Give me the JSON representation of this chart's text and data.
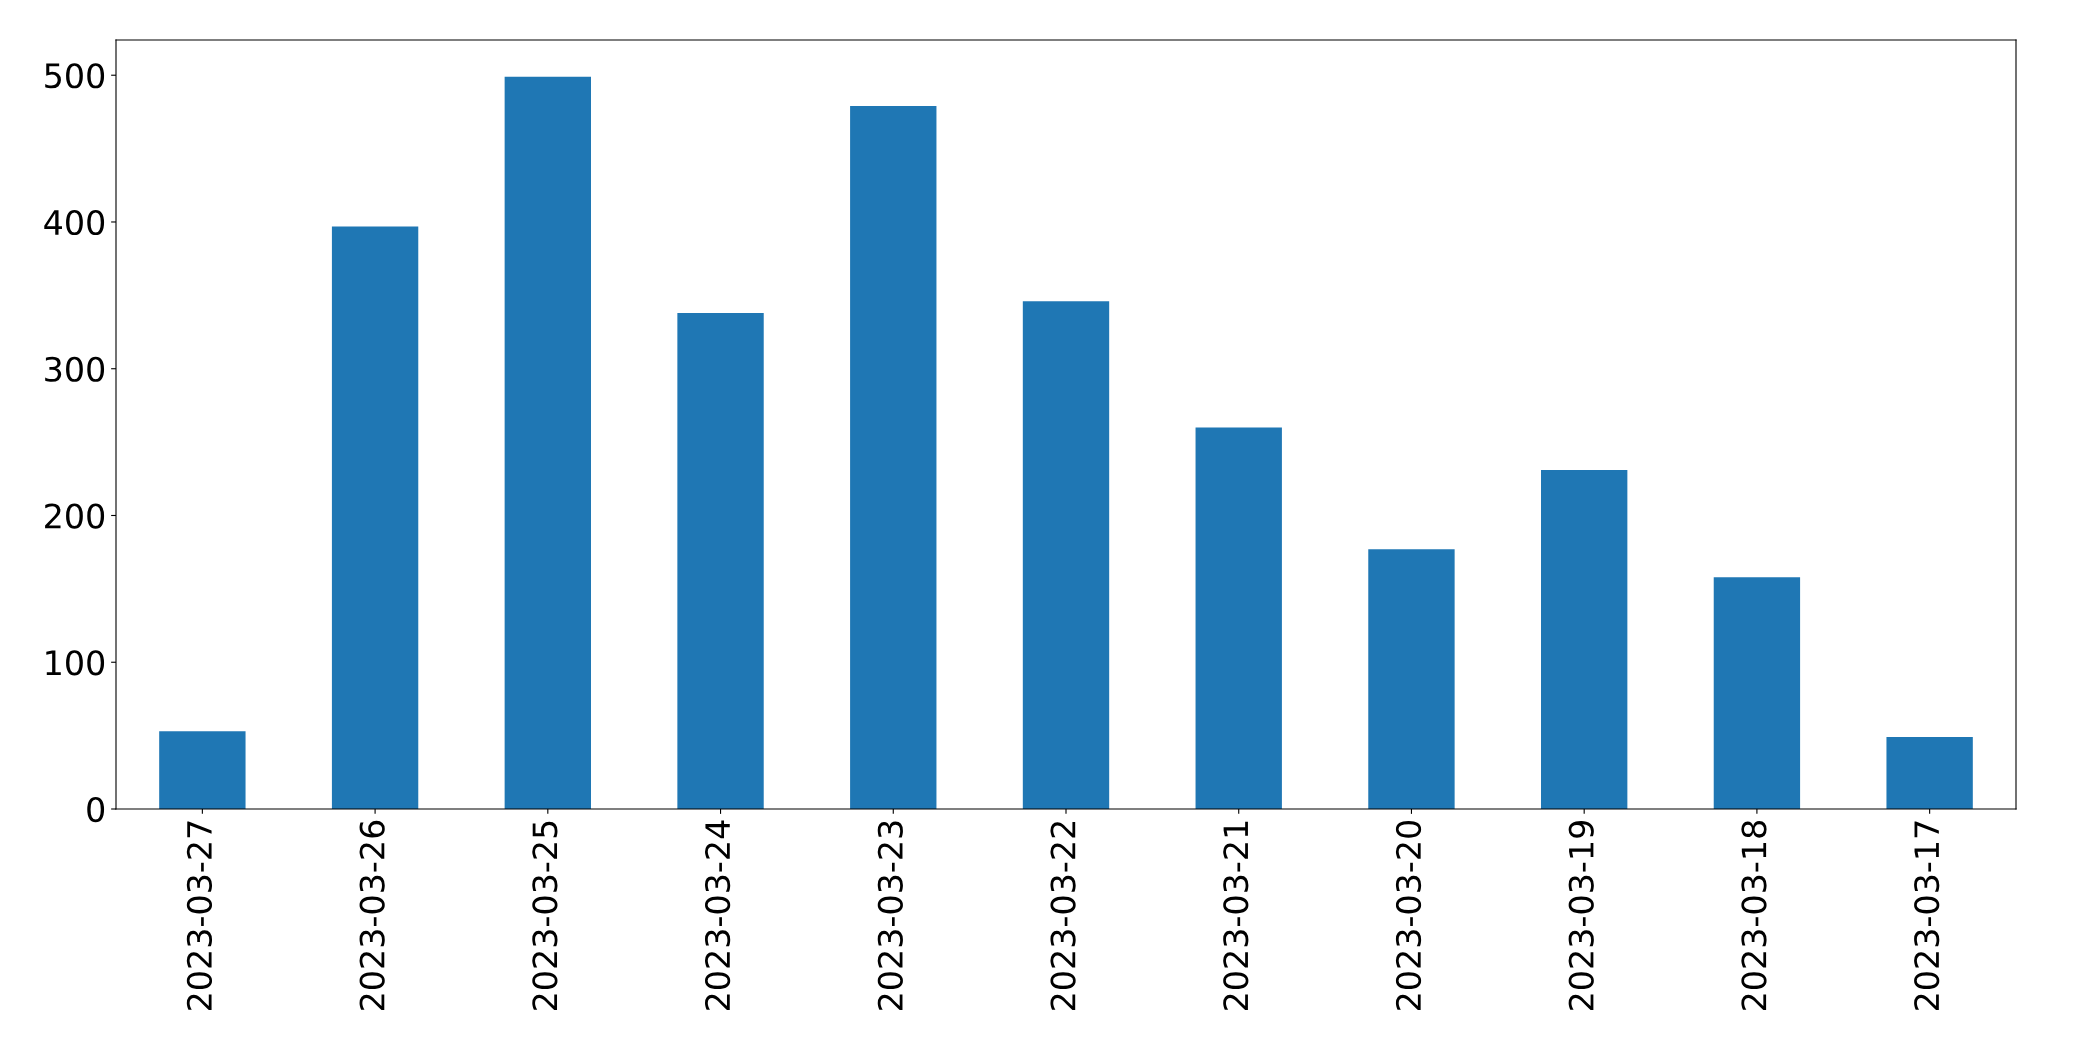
{
  "chart_data": {
    "type": "bar",
    "categories": [
      "2023-03-27",
      "2023-03-26",
      "2023-03-25",
      "2023-03-24",
      "2023-03-23",
      "2023-03-22",
      "2023-03-21",
      "2023-03-20",
      "2023-03-19",
      "2023-03-18",
      "2023-03-17"
    ],
    "values": [
      53,
      397,
      499,
      338,
      479,
      346,
      260,
      177,
      231,
      158,
      49
    ],
    "color": "#1f77b4",
    "ylim": [
      0,
      524
    ],
    "yticks": [
      0,
      100,
      200,
      300,
      400,
      500
    ],
    "grid": false,
    "legend": false
  }
}
